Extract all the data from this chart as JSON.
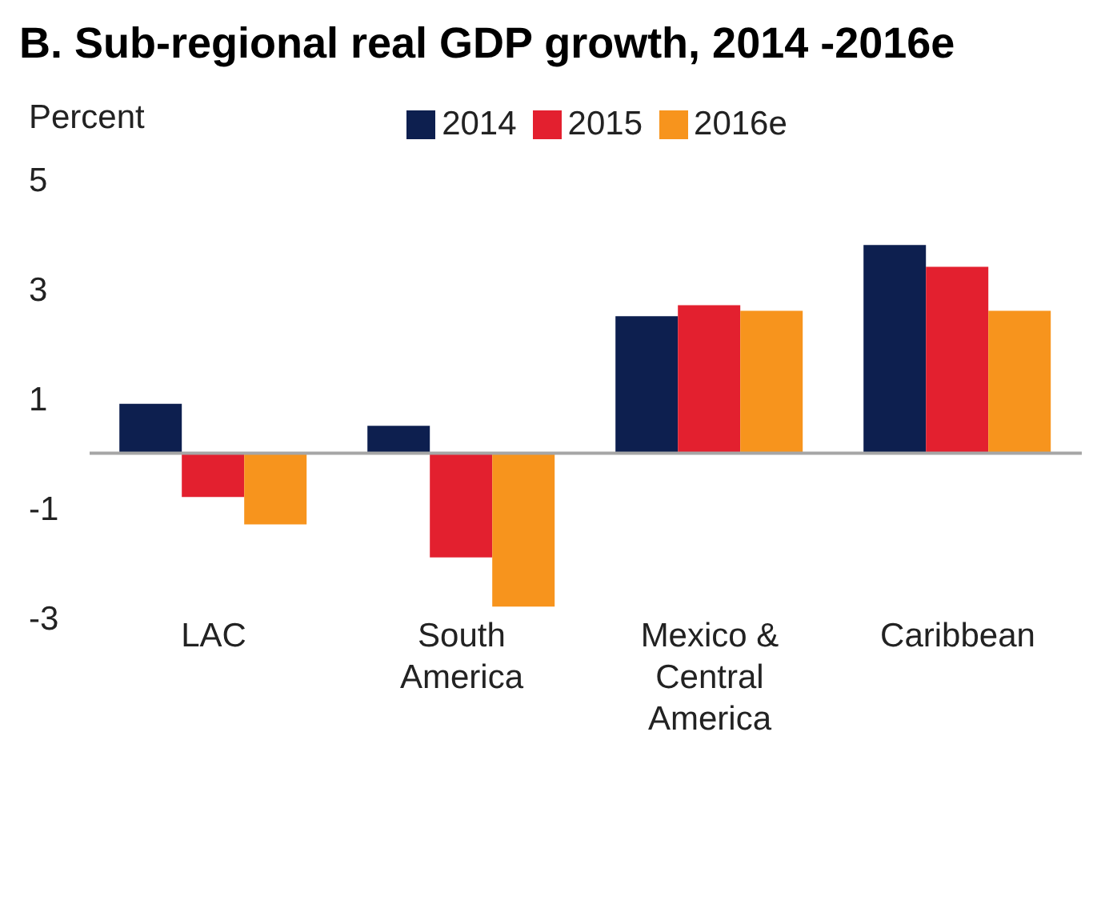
{
  "chart_data": {
    "type": "bar",
    "title": "B. Sub-regional real GDP growth, 2014 -2016e",
    "ylabel": "Percent",
    "categories": [
      "LAC",
      "South America",
      "Mexico & Central America",
      "Caribbean"
    ],
    "series": [
      {
        "name": "2014",
        "color": "#0d1f4f",
        "values": [
          0.9,
          0.5,
          2.5,
          3.8
        ]
      },
      {
        "name": "2015",
        "color": "#e3202f",
        "values": [
          -0.8,
          -1.9,
          2.7,
          3.4
        ]
      },
      {
        "name": "2016e",
        "color": "#f7941d",
        "values": [
          -1.3,
          -2.8,
          2.6,
          2.6
        ]
      }
    ],
    "ylim": [
      -3,
      5
    ],
    "yticks": [
      -3,
      -1,
      1,
      3,
      5
    ],
    "grid": false,
    "legend": "top",
    "ref_lines": [
      {
        "axis": "y",
        "value": 0,
        "color": "#a6a6a6"
      }
    ]
  }
}
